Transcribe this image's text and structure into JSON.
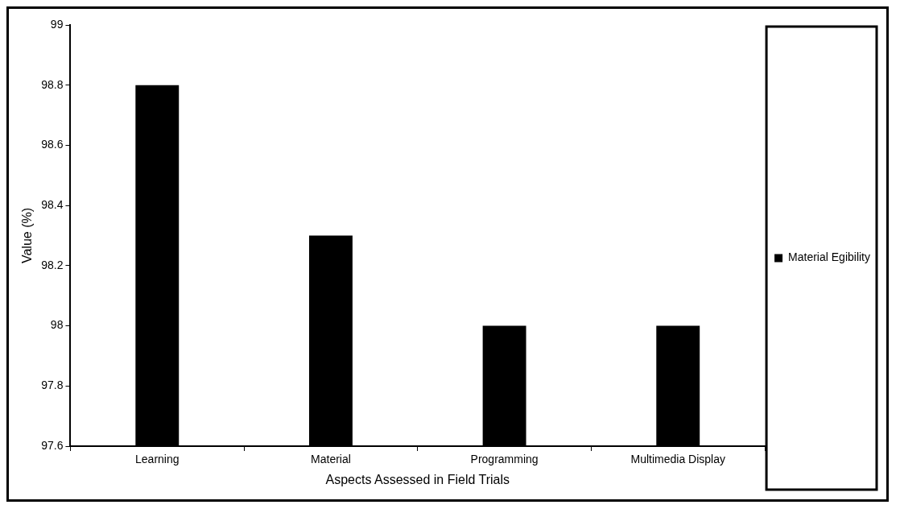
{
  "chart_data": {
    "type": "bar",
    "xlabel": "Aspects Assessed in Field Trials",
    "ylabel": "Value (%)",
    "categories": [
      "Learning",
      "Material",
      "Programming",
      "Multimedia Display"
    ],
    "series": [
      {
        "name": "Material Egibility",
        "color": "#000000",
        "values": [
          98.8,
          98.3,
          98.0,
          98.0
        ]
      }
    ],
    "ylim": [
      97.6,
      99
    ],
    "yticks": [
      97.6,
      97.8,
      98,
      98.2,
      98.4,
      98.6,
      98.8,
      99
    ],
    "grid": false,
    "legend": "right"
  }
}
